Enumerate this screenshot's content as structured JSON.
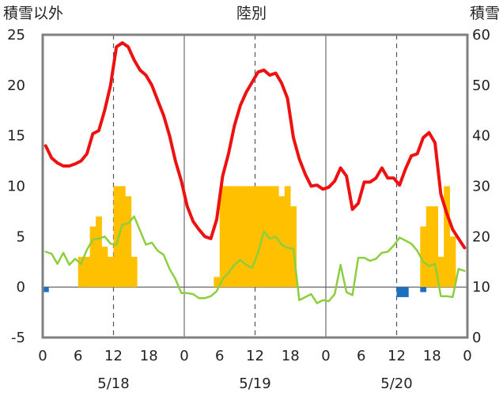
{
  "header": {
    "left_label": "積雪以外",
    "center_label": "陸別",
    "right_label": "積雪"
  },
  "colors": {
    "temperature_line": "#ee1111",
    "green_line": "#8ccf3e",
    "snowfall_bars": "#ffc000",
    "negative_bars": "#1f6fc0",
    "frame": "#808080",
    "divider": "#8a8a8a"
  },
  "chart_data": {
    "type": "bar+line",
    "left_axis": {
      "min": -5,
      "max": 25,
      "ticks": [
        "-5",
        "0",
        "5",
        "10",
        "15",
        "20",
        "25"
      ]
    },
    "right_axis": {
      "min": 0,
      "max": 60,
      "ticks": [
        "0",
        "10",
        "20",
        "30",
        "40",
        "50",
        "60"
      ]
    },
    "x_hours_total": 72,
    "x_ticks": [
      "0",
      "6",
      "12",
      "18",
      "0",
      "6",
      "12",
      "18",
      "0",
      "6",
      "12",
      "18",
      "0"
    ],
    "dates": [
      "5/18",
      "5/19",
      "5/20"
    ],
    "grid": "dashed verticals at hour 12 of each day, solid verticals at day boundaries",
    "series": [
      {
        "kind": "line",
        "axis": "left",
        "color": "red",
        "x": [
          0,
          1,
          2,
          3,
          4,
          5,
          6,
          7,
          8,
          9,
          10,
          11,
          12,
          13,
          14,
          15,
          16,
          17,
          18,
          19,
          20,
          21,
          22,
          23,
          24,
          25,
          26,
          27,
          28,
          29,
          30,
          31,
          32,
          33,
          34,
          35,
          36,
          37,
          38,
          39,
          40,
          41,
          42,
          43,
          44,
          45,
          46,
          47,
          48,
          49,
          50,
          51,
          52,
          53,
          54,
          55,
          56,
          57,
          58,
          59,
          60,
          61,
          62,
          63,
          64,
          65,
          66,
          67,
          68,
          69,
          70,
          71
        ],
        "values": [
          14,
          12.8,
          12.3,
          12,
          12,
          12.2,
          12.5,
          13.2,
          15.2,
          15.5,
          17.5,
          20,
          23.8,
          24.2,
          23.8,
          22.5,
          21.5,
          21,
          20,
          18.5,
          17,
          15,
          12.5,
          10.5,
          8,
          6.5,
          5.7,
          5,
          4.8,
          6.7,
          11,
          13.2,
          16,
          18,
          19.3,
          20.3,
          21.3,
          21.5,
          21,
          21.2,
          20.2,
          18.7,
          14.8,
          12.7,
          11.2,
          10,
          10.1,
          9.7,
          9.9,
          10.5,
          11.8,
          11,
          7.7,
          8.3,
          10.4,
          10.4,
          10.8,
          11.8,
          10.8,
          10.8,
          10.1,
          11.7,
          13,
          13.2,
          14.8,
          15.3,
          14.3,
          9.2,
          7.3,
          5.7,
          4.8,
          3.9
        ]
      },
      {
        "kind": "line",
        "axis": "left",
        "color": "green",
        "x": [
          0,
          1,
          2,
          3,
          4,
          5,
          6,
          7,
          8,
          9,
          10,
          11,
          12,
          13,
          14,
          15,
          16,
          17,
          18,
          19,
          20,
          21,
          22,
          23,
          24,
          25,
          26,
          27,
          28,
          29,
          30,
          31,
          32,
          33,
          34,
          35,
          36,
          37,
          38,
          39,
          40,
          41,
          42,
          43,
          44,
          45,
          46,
          47,
          48,
          49,
          50,
          51,
          52,
          53,
          54,
          55,
          56,
          57,
          58,
          59,
          60,
          61,
          62,
          63,
          64,
          65,
          66,
          67,
          68,
          69,
          70,
          71
        ],
        "values": [
          3.5,
          3.3,
          2.3,
          3.4,
          2.2,
          2.8,
          2.3,
          3.7,
          4.7,
          4.8,
          5,
          4.3,
          4.2,
          6.2,
          6.3,
          7,
          5.6,
          4.2,
          4.4,
          3.6,
          3.2,
          1.8,
          0.8,
          -0.6,
          -0.6,
          -0.7,
          -1.1,
          -1.1,
          -0.9,
          -0.4,
          0.8,
          1.4,
          2.2,
          2.7,
          2.2,
          1.9,
          3.4,
          5.5,
          4.8,
          5,
          4.2,
          3.9,
          3.8,
          -1.3,
          -1,
          -0.7,
          -1.6,
          -1.3,
          -1.4,
          -0.7,
          2.2,
          -0.5,
          -0.8,
          2.9,
          2.9,
          2.6,
          2.8,
          3.4,
          3.5,
          4.1,
          4.9,
          4.6,
          4.3,
          3.6,
          2.5,
          2.1,
          2.3,
          -0.9,
          -0.9,
          -1,
          1.8,
          1.6
        ]
      },
      {
        "kind": "bar",
        "axis": "left",
        "color": "orange",
        "x": [
          6,
          7,
          8,
          9,
          10,
          11,
          12,
          13,
          14,
          15,
          16,
          29,
          30,
          31,
          32,
          33,
          34,
          35,
          36,
          37,
          38,
          39,
          40,
          41,
          42,
          43,
          64,
          65,
          66,
          67,
          68,
          69,
          70
        ],
        "values": [
          3,
          3,
          6,
          7,
          4,
          3,
          10,
          10,
          9,
          3,
          0,
          1,
          10,
          10,
          10,
          10,
          10,
          10,
          10,
          10,
          10,
          10,
          9,
          10,
          8,
          0,
          6,
          8,
          8,
          3,
          10,
          5,
          0
        ]
      },
      {
        "kind": "bar",
        "axis": "left",
        "color": "blue",
        "x": [
          0,
          60,
          61,
          64
        ],
        "values": [
          -0.5,
          -1,
          -1,
          -0.5
        ]
      }
    ]
  }
}
